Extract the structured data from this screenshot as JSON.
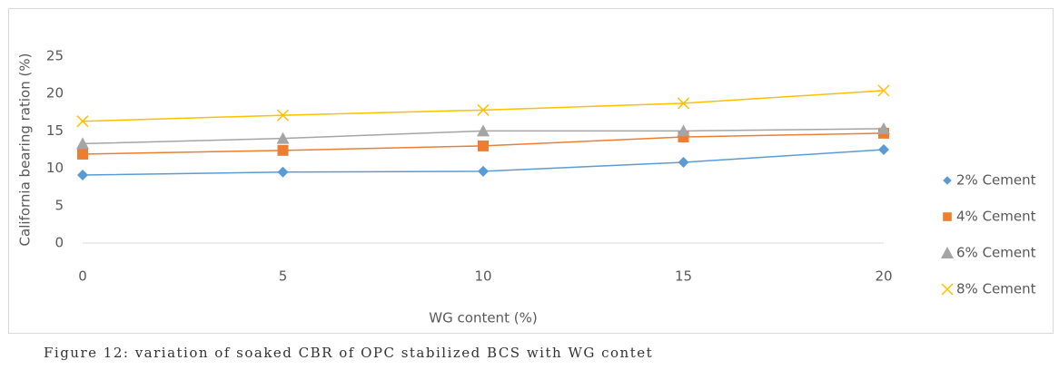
{
  "chart_data": {
    "type": "line",
    "x_label": "WG content (%)",
    "y_label": "California bearing ration (%)",
    "caption": "Figure 12: variation of soaked CBR of OPC stabilized BCS with WG contet",
    "x": [
      0,
      5,
      10,
      15,
      20
    ],
    "xlim": [
      0,
      20
    ],
    "xticks": [
      0,
      5,
      10,
      15,
      20
    ],
    "ylim": [
      0,
      25
    ],
    "yticks": [
      0,
      5,
      10,
      15,
      20,
      25
    ],
    "grid": false,
    "legend": "right",
    "series": [
      {
        "name": "2% Cement",
        "color": "#5b9bd5",
        "marker": "diamond",
        "values": [
          9.1,
          9.5,
          9.6,
          10.8,
          12.5
        ]
      },
      {
        "name": "4% Cement",
        "color": "#ed7d31",
        "marker": "square",
        "values": [
          11.9,
          12.4,
          13.0,
          14.2,
          14.7
        ]
      },
      {
        "name": "6% Cement",
        "color": "#a5a5a5",
        "marker": "triangle",
        "values": [
          13.3,
          14.0,
          15.0,
          15.0,
          15.3
        ]
      },
      {
        "name": "8% Cement",
        "color": "#ffc000",
        "marker": "x",
        "values": [
          16.3,
          17.1,
          17.8,
          18.7,
          20.4
        ]
      }
    ]
  }
}
